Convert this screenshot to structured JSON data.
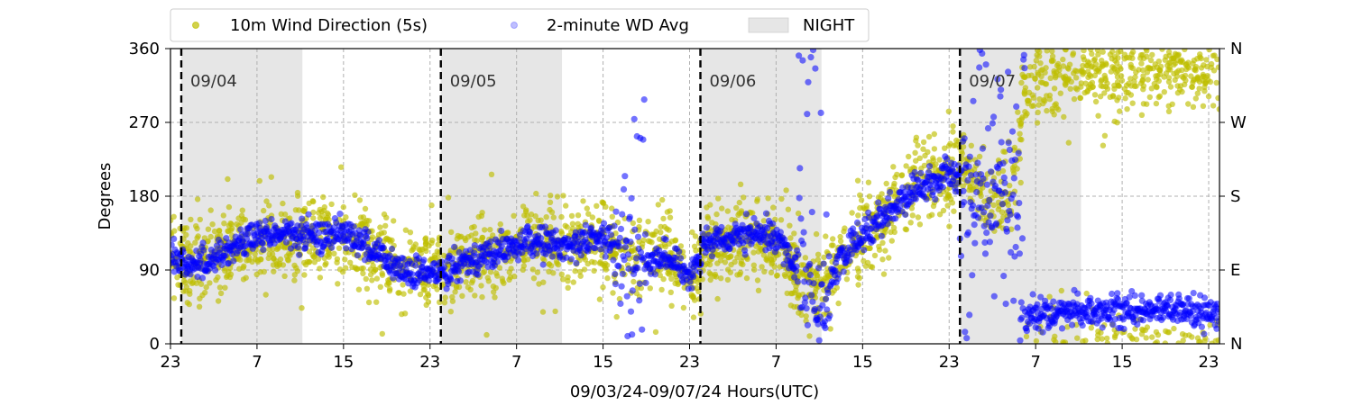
{
  "chart_data": {
    "type": "scatter",
    "title": "",
    "xlabel": "09/03/24-09/07/24  Hours(UTC)",
    "ylabel": "Degrees",
    "x_range_hours": [
      0,
      97
    ],
    "xticks": [
      {
        "hour": 0,
        "label": "23"
      },
      {
        "hour": 8,
        "label": "7"
      },
      {
        "hour": 16,
        "label": "15"
      },
      {
        "hour": 24,
        "label": "23"
      },
      {
        "hour": 32,
        "label": "7"
      },
      {
        "hour": 40,
        "label": "15"
      },
      {
        "hour": 48,
        "label": "23"
      },
      {
        "hour": 56,
        "label": "7"
      },
      {
        "hour": 64,
        "label": "15"
      },
      {
        "hour": 72,
        "label": "23"
      },
      {
        "hour": 80,
        "label": "7"
      },
      {
        "hour": 88,
        "label": "15"
      },
      {
        "hour": 96,
        "label": "23"
      }
    ],
    "ylim": [
      0,
      360
    ],
    "yticks": [
      0,
      90,
      180,
      270,
      360
    ],
    "ytick_labels": [
      "0",
      "90",
      "180",
      "270",
      "360"
    ],
    "y2_labels": [
      {
        "value": 0,
        "label": "N"
      },
      {
        "value": 90,
        "label": "E"
      },
      {
        "value": 180,
        "label": "S"
      },
      {
        "value": 270,
        "label": "W"
      },
      {
        "value": 360,
        "label": "N"
      }
    ],
    "grid": true,
    "legend_position": "top",
    "legend": [
      {
        "label": "10m Wind Direction (5s)",
        "color": "#bfbf00",
        "marker": "dot"
      },
      {
        "label": "2-minute WD Avg",
        "color": "#0000ff",
        "marker": "dot-faded"
      },
      {
        "label": "NIGHT",
        "color": "#e6e6e6",
        "marker": "patch"
      }
    ],
    "night_periods_hours": [
      [
        1,
        12.2
      ],
      [
        25,
        36.2
      ],
      [
        49,
        60.2
      ],
      [
        73,
        84.2
      ]
    ],
    "day_markers": [
      {
        "hour": 1,
        "label": "09/04"
      },
      {
        "hour": 25,
        "label": "09/05"
      },
      {
        "hour": 49,
        "label": "09/06"
      },
      {
        "hour": 73,
        "label": "09/07"
      }
    ],
    "series": [
      {
        "name": "10m Wind Direction (5s)",
        "color": "#bfbf00",
        "spread_deg": 45,
        "trend": [
          [
            0,
            105
          ],
          [
            2,
            100
          ],
          [
            4,
            108
          ],
          [
            6,
            118
          ],
          [
            8,
            122
          ],
          [
            10,
            128
          ],
          [
            12,
            126
          ],
          [
            14,
            126
          ],
          [
            16,
            130
          ],
          [
            18,
            125
          ],
          [
            20,
            105
          ],
          [
            22,
            100
          ],
          [
            24,
            85
          ],
          [
            26,
            95
          ],
          [
            28,
            103
          ],
          [
            30,
            110
          ],
          [
            32,
            120
          ],
          [
            34,
            122
          ],
          [
            36,
            118
          ],
          [
            38,
            122
          ],
          [
            40,
            125
          ],
          [
            41.5,
            110
          ],
          [
            43,
            100
          ],
          [
            45,
            115
          ],
          [
            47,
            95
          ],
          [
            48,
            85
          ],
          [
            49.5,
            115
          ],
          [
            51,
            120
          ],
          [
            53,
            125
          ],
          [
            55,
            130
          ],
          [
            56.5,
            120
          ],
          [
            57.5,
            95
          ],
          [
            58.5,
            80
          ],
          [
            60,
            60
          ],
          [
            61.5,
            95
          ],
          [
            63,
            120
          ],
          [
            65,
            140
          ],
          [
            67,
            170
          ],
          [
            69,
            195
          ],
          [
            71,
            205
          ],
          [
            72,
            200
          ],
          [
            73,
            215
          ],
          [
            74,
            200
          ],
          [
            75,
            185
          ],
          [
            76.5,
            170
          ],
          [
            78,
            200
          ],
          [
            79,
            320
          ],
          [
            80,
            325
          ],
          [
            82,
            330
          ],
          [
            84,
            335
          ],
          [
            86,
            338
          ],
          [
            88,
            340
          ],
          [
            90,
            342
          ],
          [
            92,
            340
          ],
          [
            94,
            340
          ],
          [
            96,
            340
          ],
          [
            97,
            335
          ]
        ]
      },
      {
        "name": "2-minute WD Avg",
        "color": "#0000ff",
        "trend": [
          [
            0,
            110
          ],
          [
            2,
            95
          ],
          [
            4,
            105
          ],
          [
            6,
            120
          ],
          [
            8,
            130
          ],
          [
            10,
            135
          ],
          [
            12,
            132
          ],
          [
            14,
            130
          ],
          [
            16,
            140
          ],
          [
            18,
            120
          ],
          [
            20,
            100
          ],
          [
            22,
            85
          ],
          [
            24,
            85
          ],
          [
            26,
            95
          ],
          [
            28,
            105
          ],
          [
            30,
            110
          ],
          [
            32,
            120
          ],
          [
            34,
            125
          ],
          [
            36,
            118
          ],
          [
            38,
            125
          ],
          [
            40,
            130
          ],
          [
            41.5,
            115
          ],
          [
            43,
            90
          ],
          [
            45,
            110
          ],
          [
            47,
            95
          ],
          [
            48,
            85
          ],
          [
            49.5,
            120
          ],
          [
            51,
            125
          ],
          [
            53,
            130
          ],
          [
            55,
            135
          ],
          [
            56.5,
            125
          ],
          [
            57.5,
            100
          ],
          [
            58.5,
            80
          ],
          [
            60,
            55
          ],
          [
            61.5,
            90
          ],
          [
            63,
            120
          ],
          [
            65,
            145
          ],
          [
            67,
            170
          ],
          [
            69,
            190
          ],
          [
            71,
            200
          ],
          [
            72,
            210
          ],
          [
            73,
            200
          ],
          [
            74,
            190
          ],
          [
            75,
            160
          ],
          [
            76.5,
            180
          ],
          [
            78,
            190
          ],
          [
            79,
            30
          ],
          [
            80,
            35
          ],
          [
            82,
            38
          ],
          [
            84,
            40
          ],
          [
            86,
            38
          ],
          [
            88,
            40
          ],
          [
            90,
            42
          ],
          [
            92,
            40
          ],
          [
            94,
            40
          ],
          [
            96,
            38
          ],
          [
            97,
            35
          ]
        ]
      }
    ]
  }
}
